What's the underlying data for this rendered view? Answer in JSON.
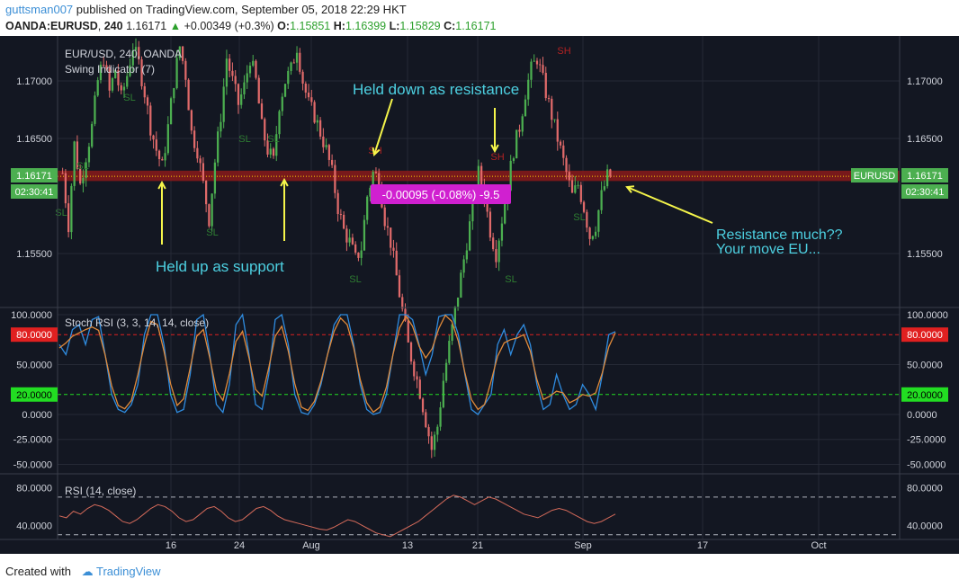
{
  "header": {
    "author": "guttsman007",
    "published_text": "published on TradingView.com, September 05, 2018 22:29 HKT",
    "symbol": "OANDA:EURUSD",
    "interval": "240",
    "last": "1.16171",
    "change": "+0.00349 (+0.3%)",
    "open_label": "O:",
    "open": "1.15851",
    "high_label": "H:",
    "high": "1.16399",
    "low_label": "L:",
    "low": "1.15829",
    "close_label": "C:",
    "close": "1.16171"
  },
  "footer": {
    "created_with": "Created with",
    "brand": "TradingView"
  },
  "colors": {
    "background": "#131722",
    "up": "#4caf50",
    "down": "#e06a6a",
    "zone": "#8b1a1a",
    "annotation": "#4dd0e1",
    "arrow": "#f5f54a",
    "rsi_stoch_k": "#2f8ce0",
    "rsi_stoch_d": "#e08a3a",
    "rsi": "#d46a5a",
    "level80": "#e02020",
    "level20": "#22dd22"
  },
  "chart_data": {
    "type": "candlestick",
    "main_pane": {
      "title": "EUR/USD, 240, OANDA",
      "indicator": "Swing Indicator (7)",
      "y_ticks": [
        "1.17000",
        "1.16500",
        "1.16171",
        "1.15500"
      ],
      "y_tick_values": [
        1.17,
        1.165,
        1.155
      ],
      "last_price": "1.16171",
      "last_price_value": 1.16171,
      "countdown": "02:30:41",
      "symbol_label": "EURUSD",
      "resistance_zone": [
        1.1613,
        1.1622
      ],
      "measure_label": "-0.00095 (-0.08%) -9.5",
      "swing_markers": [
        {
          "label": "SL",
          "date": "Jul 3",
          "price": 1.1586
        },
        {
          "label": "SL",
          "date": "Jul 4",
          "price": 1.162
        },
        {
          "label": "SL",
          "date": "Jul 10",
          "price": 1.168
        },
        {
          "label": "SL",
          "date": "Jul 20",
          "price": 1.1562
        },
        {
          "label": "SL",
          "date": "Jul 22",
          "price": 1.1637
        },
        {
          "label": "SL",
          "date": "Jul 26",
          "price": 1.1637
        },
        {
          "label": "SH",
          "date": "Aug 9",
          "price": 1.163
        },
        {
          "label": "SL",
          "date": "Aug 5",
          "price": 1.1535
        },
        {
          "label": "SH",
          "date": "Aug 23",
          "price": 1.1624
        },
        {
          "label": "SL",
          "date": "Aug 24",
          "price": 1.1535
        },
        {
          "label": "SH",
          "date": "Aug 28",
          "price": 1.168
        },
        {
          "label": "SL",
          "date": "Sep 1",
          "price": 1.159
        }
      ],
      "annotations": [
        {
          "text": "Held down as resistance"
        },
        {
          "text": "Held up as support"
        },
        {
          "text": "Resistance much??"
        },
        {
          "text": "Your move EU..."
        }
      ]
    },
    "stoch_rsi": {
      "title": "Stoch RSI (3, 3, 14, 14, close)",
      "y_ticks": [
        "100.0000",
        "80.0000",
        "50.0000",
        "20.0000",
        "0.0000",
        "-25.0000",
        "-50.0000"
      ],
      "range": [
        -55,
        100
      ],
      "levels": [
        80,
        20
      ],
      "level_labels": [
        "80.0000",
        "20.0000"
      ]
    },
    "rsi": {
      "title": "RSI (14, close)",
      "y_ticks": [
        "80.0000",
        "40.0000"
      ],
      "range": [
        25,
        90
      ],
      "levels": [
        70,
        30
      ]
    },
    "x_axis": {
      "labels": [
        "16",
        "24",
        "Aug",
        "13",
        "21",
        "Sep",
        "17",
        "Oct"
      ]
    },
    "price_path": [
      1.162,
      1.1575,
      1.1645,
      1.161,
      1.1635,
      1.166,
      1.17,
      1.172,
      1.169,
      1.171,
      1.1685,
      1.1705,
      1.173,
      1.1715,
      1.169,
      1.166,
      1.164,
      1.1625,
      1.166,
      1.17,
      1.173,
      1.1705,
      1.1655,
      1.164,
      1.161,
      1.158,
      1.163,
      1.167,
      1.172,
      1.17,
      1.168,
      1.1695,
      1.172,
      1.17,
      1.166,
      1.164,
      1.163,
      1.168,
      1.17,
      1.171,
      1.173,
      1.17,
      1.168,
      1.167,
      1.1655,
      1.164,
      1.162,
      1.159,
      1.157,
      1.156,
      1.1545,
      1.1555,
      1.16,
      1.162,
      1.1615,
      1.158,
      1.156,
      1.153,
      1.15,
      1.147,
      1.145,
      1.143,
      1.1405,
      1.138,
      1.14,
      1.144,
      1.147,
      1.15,
      1.153,
      1.156,
      1.159,
      1.162,
      1.16,
      1.157,
      1.155,
      1.158,
      1.161,
      1.164,
      1.166,
      1.169,
      1.171,
      1.172,
      1.17,
      1.168,
      1.166,
      1.164,
      1.162,
      1.16,
      1.161,
      1.159,
      1.1565,
      1.1575,
      1.16,
      1.1617
    ],
    "stoch_k_path": [
      70,
      60,
      85,
      90,
      70,
      95,
      98,
      60,
      20,
      5,
      2,
      10,
      30,
      80,
      100,
      100,
      70,
      20,
      2,
      5,
      40,
      95,
      100,
      60,
      10,
      2,
      30,
      90,
      100,
      60,
      10,
      5,
      40,
      95,
      100,
      70,
      20,
      2,
      0,
      10,
      30,
      60,
      90,
      100,
      100,
      70,
      30,
      5,
      0,
      2,
      20,
      60,
      100,
      100,
      95,
      70,
      40,
      60,
      98,
      100,
      100,
      80,
      40,
      5,
      0,
      10,
      20,
      70,
      85,
      60,
      80,
      90,
      70,
      30,
      5,
      10,
      40,
      20,
      5,
      10,
      30,
      20,
      5,
      40,
      80,
      83
    ],
    "rsi_path": [
      50,
      48,
      55,
      52,
      58,
      62,
      60,
      56,
      50,
      44,
      42,
      46,
      52,
      58,
      62,
      60,
      55,
      48,
      44,
      46,
      52,
      58,
      60,
      55,
      48,
      44,
      46,
      52,
      58,
      60,
      56,
      50,
      46,
      44,
      42,
      40,
      38,
      36,
      35,
      38,
      42,
      46,
      44,
      40,
      36,
      32,
      30,
      28,
      32,
      36,
      40,
      44,
      50,
      56,
      62,
      68,
      72,
      70,
      66,
      62,
      66,
      70,
      68,
      64,
      60,
      56,
      52,
      50,
      48,
      52,
      56,
      58,
      56,
      52,
      48,
      44,
      42,
      44,
      48,
      52
    ]
  }
}
